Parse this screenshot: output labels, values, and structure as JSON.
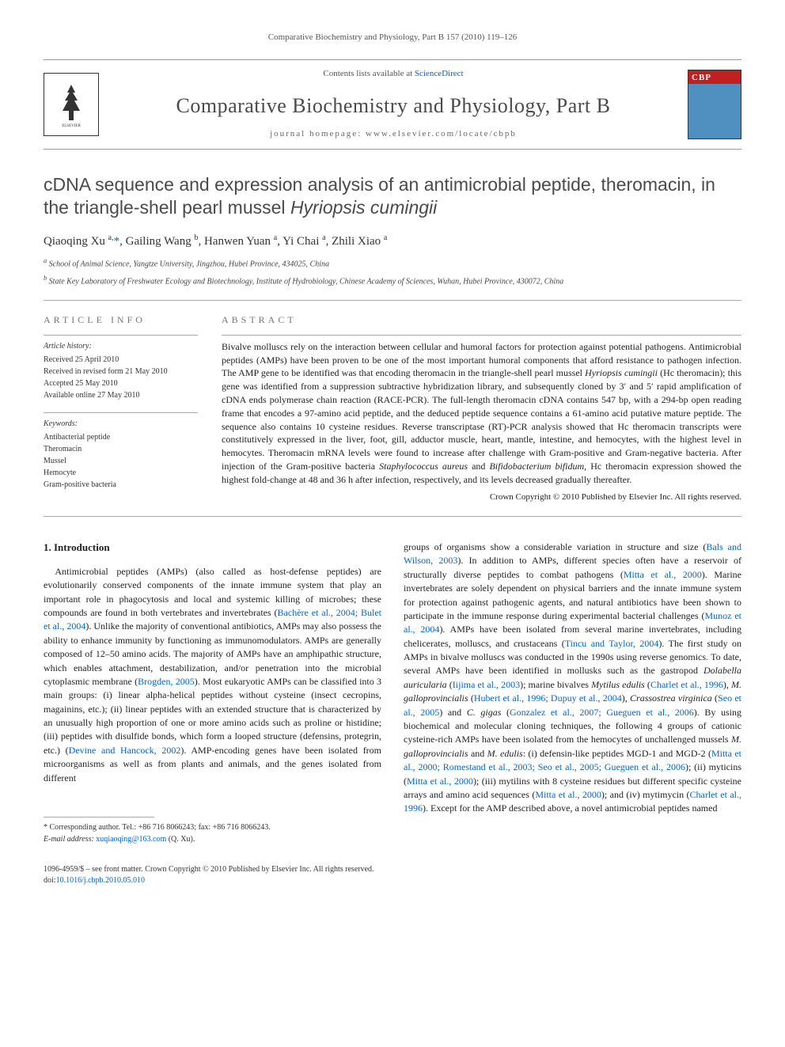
{
  "header": {
    "running_head": "Comparative Biochemistry and Physiology, Part B 157 (2010) 119–126",
    "contents_prefix": "Contents lists available at ",
    "contents_link": "ScienceDirect",
    "journal_name": "Comparative Biochemistry and Physiology, Part B",
    "homepage_label": "journal homepage: www.elsevier.com/locate/cbpb"
  },
  "article": {
    "title_pre": "cDNA sequence and expression analysis of an antimicrobial peptide, theromacin, in the triangle-shell pearl mussel ",
    "title_species": "Hyriopsis cumingii",
    "authors_html": "Qiaoqing Xu <sup>a,</sup><span class='star'>*</span>, Gailing Wang <sup>b</sup>, Hanwen Yuan <sup>a</sup>, Yi Chai <sup>a</sup>, Zhili Xiao <sup>a</sup>",
    "affil_a": "a School of Animal Science, Yangtze University, Jingzhou, Hubei Province, 434025, China",
    "affil_b": "b State Key Laboratory of Freshwater Ecology and Biotechnology, Institute of Hydrobiology, Chinese Academy of Sciences, Wuhan, Hubei Province, 430072, China"
  },
  "meta": {
    "info_heading": "article info",
    "history_title": "Article history:",
    "received": "Received 25 April 2010",
    "revised": "Received in revised form 21 May 2010",
    "accepted": "Accepted 25 May 2010",
    "online": "Available online 27 May 2010",
    "keywords_title": "Keywords:",
    "keywords": [
      "Antibacterial peptide",
      "Theromacin",
      "Mussel",
      "Hemocyte",
      "Gram-positive bacteria"
    ]
  },
  "abstract": {
    "heading": "abstract",
    "text": "Bivalve molluscs rely on the interaction between cellular and humoral factors for protection against potential pathogens. Antimicrobial peptides (AMPs) have been proven to be one of the most important humoral components that afford resistance to pathogen infection. The AMP gene to be identified was that encoding theromacin in the triangle-shell pearl mussel <span class='italic'>Hyriopsis cumingii</span> (Hc theromacin); this gene was identified from a suppression subtractive hybridization library, and subsequently cloned by 3′ and 5′ rapid amplification of cDNA ends polymerase chain reaction (RACE-PCR). The full-length theromacin cDNA contains 547 bp, with a 294-bp open reading frame that encodes a 97-amino acid peptide, and the deduced peptide sequence contains a 61-amino acid putative mature peptide. The sequence also contains 10 cysteine residues. Reverse transcriptase (RT)-PCR analysis showed that Hc theromacin transcripts were constitutively expressed in the liver, foot, gill, adductor muscle, heart, mantle, intestine, and hemocytes, with the highest level in hemocytes. Theromacin mRNA levels were found to increase after challenge with Gram-positive and Gram-negative bacteria. After injection of the Gram-positive bacteria <span class='italic'>Staphylococcus aureus</span> and <span class='italic'>Bifidobacterium bifidum</span>, Hc theromacin expression showed the highest fold-change at 48 and 36 h after infection, respectively, and its levels decreased gradually thereafter.",
    "copyright": "Crown Copyright © 2010 Published by Elsevier Inc. All rights reserved."
  },
  "body": {
    "section_heading": "1. Introduction",
    "col1": "Antimicrobial peptides (AMPs) (also called as host-defense peptides) are evolutionarily conserved components of the innate immune system that play an important role in phagocytosis and local and systemic killing of microbes; these compounds are found in both vertebrates and invertebrates (<a href='#'>Bachère et al., 2004; Bulet et al., 2004</a>). Unlike the majority of conventional antibiotics, AMPs may also possess the ability to enhance immunity by functioning as immunomodulators. AMPs are generally composed of 12–50 amino acids. The majority of AMPs have an amphipathic structure, which enables attachment, destabilization, and/or penetration into the microbial cytoplasmic membrane (<a href='#'>Brogden, 2005</a>). Most eukaryotic AMPs can be classified into 3 main groups: (i) linear alpha-helical peptides without cysteine (insect cecropins, magainins, etc.); (ii) linear peptides with an extended structure that is characterized by an unusually high proportion of one or more amino acids such as proline or histidine; (iii) peptides with disulfide bonds, which form a looped structure (defensins, protegrin, etc.) (<a href='#'>Devine and Hancock, 2002</a>). AMP-encoding genes have been isolated from microorganisms as well as from plants and animals, and the genes isolated from different",
    "col2": "groups of organisms show a considerable variation in structure and size (<a href='#'>Bals and Wilson, 2003</a>). In addition to AMPs, different species often have a reservoir of structurally diverse peptides to combat pathogens (<a href='#'>Mitta et al., 2000</a>). Marine invertebrates are solely dependent on physical barriers and the innate immune system for protection against pathogenic agents, and natural antibiotics have been shown to participate in the immune response during experimental bacterial challenges (<a href='#'>Munoz et al., 2004</a>). AMPs have been isolated from several marine invertebrates, including chelicerates, molluscs, and crustaceans (<a href='#'>Tincu and Taylor, 2004</a>). The first study on AMPs in bivalve molluscs was conducted in the 1990s using reverse genomics. To date, several AMPs have been identified in mollusks such as the gastropod <span class='italic'>Dolabella auricularia</span> (<a href='#'>Iijima et al., 2003</a>); marine bivalves <span class='italic'>Mytilus edulis</span> (<a href='#'>Charlet et al., 1996</a>), <span class='italic'>M. galloprovincialis</span> (<a href='#'>Hubert et al., 1996; Dupuy et al., 2004</a>), <span class='italic'>Crassostrea virginica</span> (<a href='#'>Seo et al., 2005</a>) and <span class='italic'>C. gigas</span> (<a href='#'>Gonzalez et al., 2007; Gueguen et al., 2006</a>). By using biochemical and molecular cloning techniques, the following 4 groups of cationic cysteine-rich AMPs have been isolated from the hemocytes of unchallenged mussels <span class='italic'>M. galloprovincialis</span> and <span class='italic'>M. edulis</span>: (i) defensin-like peptides MGD-1 and MGD-2 (<a href='#'>Mitta et al., 2000; Romestand et al., 2003; Seo et al., 2005; Gueguen et al., 2006</a>); (ii) myticins (<a href='#'>Mitta et al., 2000</a>); (iii) mytilins with 8 cysteine residues but different specific cysteine arrays and amino acid sequences (<a href='#'>Mitta et al., 2000</a>); and (iv) mytimycin (<a href='#'>Charlet et al., 1996</a>). Except for the AMP described above, a novel antimicrobial peptides named"
  },
  "footnote": {
    "corr": "* Corresponding author. Tel.: +86 716 8066243; fax: +86 716 8066243.",
    "email_label": "E-mail address: ",
    "email": "xuqiaoqing@163.com",
    "email_suffix": " (Q. Xu)."
  },
  "footer": {
    "issn": "1096-4959/$ – see front matter. Crown Copyright © 2010 Published by Elsevier Inc. All rights reserved.",
    "doi_prefix": "doi:",
    "doi": "10.1016/j.cbpb.2010.05.010"
  },
  "colors": {
    "link": "#0066cc",
    "text": "#222222",
    "heading_gray": "#4a4a4a",
    "divider": "#aaaaaa"
  }
}
